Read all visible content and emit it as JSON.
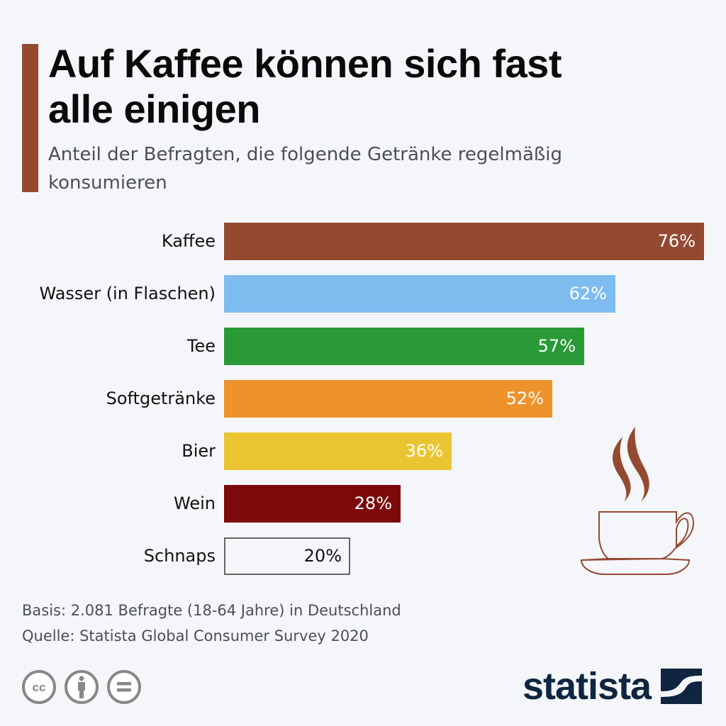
{
  "header": {
    "accent_color": "#944a31",
    "title": "Auf Kaffee können sich fast alle einigen",
    "subtitle": "Anteil der Befragten, die folgende Getränke regelmäßig konsumieren"
  },
  "chart_data": {
    "type": "bar",
    "orientation": "horizontal",
    "title": "Auf Kaffee können sich fast alle einigen",
    "subtitle": "Anteil der Befragten, die folgende Getränke regelmäßig konsumieren",
    "xlabel": "",
    "ylabel": "",
    "unit": "%",
    "xlim": [
      0,
      76
    ],
    "grid": false,
    "categories": [
      "Kaffee",
      "Wasser (in Flaschen)",
      "Tee",
      "Softgetränke",
      "Bier",
      "Wein",
      "Schnaps"
    ],
    "values": [
      76,
      62,
      57,
      52,
      36,
      28,
      20
    ],
    "value_labels": [
      "76%",
      "62%",
      "57%",
      "52%",
      "36%",
      "28%",
      "20%"
    ],
    "colors": [
      "#944a31",
      "#7ebcf0",
      "#2a9a36",
      "#ee922c",
      "#ebc531",
      "#7d0a0a",
      "outline"
    ]
  },
  "decoration": {
    "icon": "coffee-cup-icon",
    "stroke_color": "#944a31"
  },
  "footer": {
    "basis": "Basis: 2.081 Befragte (18-64 Jahre) in Deutschland",
    "source": "Quelle: Statista Global Consumer Survey 2020",
    "license_icons": [
      "creative-commons-icon",
      "attribution-icon",
      "no-derivatives-icon"
    ]
  },
  "logo": {
    "text": "statista",
    "color": "#0f2540"
  }
}
